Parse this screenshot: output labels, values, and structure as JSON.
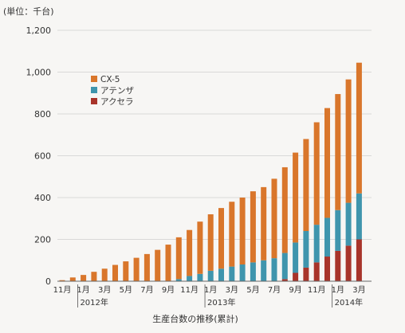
{
  "chart_data": {
    "type": "bar",
    "stacked": true,
    "unit_label": "(単位：千台)",
    "xlabel": "生産台数の推移(累計)",
    "ylim": [
      0,
      1200
    ],
    "y_ticks": [
      "0",
      "200",
      "400",
      "600",
      "800",
      "1,000",
      "1,200"
    ],
    "y_tick_values": [
      0,
      200,
      400,
      600,
      800,
      1000,
      1200
    ],
    "grid": true,
    "legend_position": "upper-left",
    "categories": [
      "2011-11",
      "2011-12",
      "2012-01",
      "2012-02",
      "2012-03",
      "2012-04",
      "2012-05",
      "2012-06",
      "2012-07",
      "2012-08",
      "2012-09",
      "2012-10",
      "2012-11",
      "2012-12",
      "2013-01",
      "2013-02",
      "2013-03",
      "2013-04",
      "2013-05",
      "2013-06",
      "2013-07",
      "2013-08",
      "2013-09",
      "2013-10",
      "2013-11",
      "2013-12",
      "2014-01",
      "2014-02",
      "2014-03"
    ],
    "x_tick_labels": [
      "11月",
      "",
      "1月",
      "",
      "3月",
      "",
      "5月",
      "",
      "7月",
      "",
      "9月",
      "",
      "11月",
      "",
      "1月",
      "",
      "3月",
      "",
      "5月",
      "",
      "7月",
      "",
      "9月",
      "",
      "11月",
      "",
      "1月",
      "",
      "3月"
    ],
    "year_labels": [
      {
        "text": "2012年",
        "start_index": 2
      },
      {
        "text": "2013年",
        "start_index": 14
      },
      {
        "text": "2014年",
        "start_index": 26
      }
    ],
    "series": [
      {
        "name": "アクセラ",
        "color": "#a8342a",
        "values": [
          0,
          0,
          0,
          0,
          0,
          0,
          0,
          0,
          0,
          0,
          0,
          0,
          0,
          0,
          0,
          0,
          0,
          0,
          0,
          0,
          0,
          10,
          40,
          65,
          90,
          118,
          145,
          170,
          200
        ]
      },
      {
        "name": "アテンザ",
        "color": "#3f95ad",
        "values": [
          0,
          0,
          0,
          0,
          0,
          0,
          0,
          0,
          0,
          0,
          0,
          10,
          25,
          35,
          50,
          60,
          70,
          80,
          90,
          100,
          110,
          125,
          145,
          175,
          180,
          185,
          195,
          205,
          220
        ]
      },
      {
        "name": "CX-5",
        "color": "#d9762b",
        "values": [
          5,
          18,
          30,
          45,
          60,
          78,
          95,
          112,
          130,
          150,
          175,
          200,
          220,
          250,
          270,
          290,
          310,
          320,
          340,
          350,
          380,
          410,
          430,
          440,
          490,
          525,
          555,
          590,
          625
        ]
      }
    ],
    "legend_order": [
      "CX-5",
      "アテンザ",
      "アクセラ"
    ]
  }
}
